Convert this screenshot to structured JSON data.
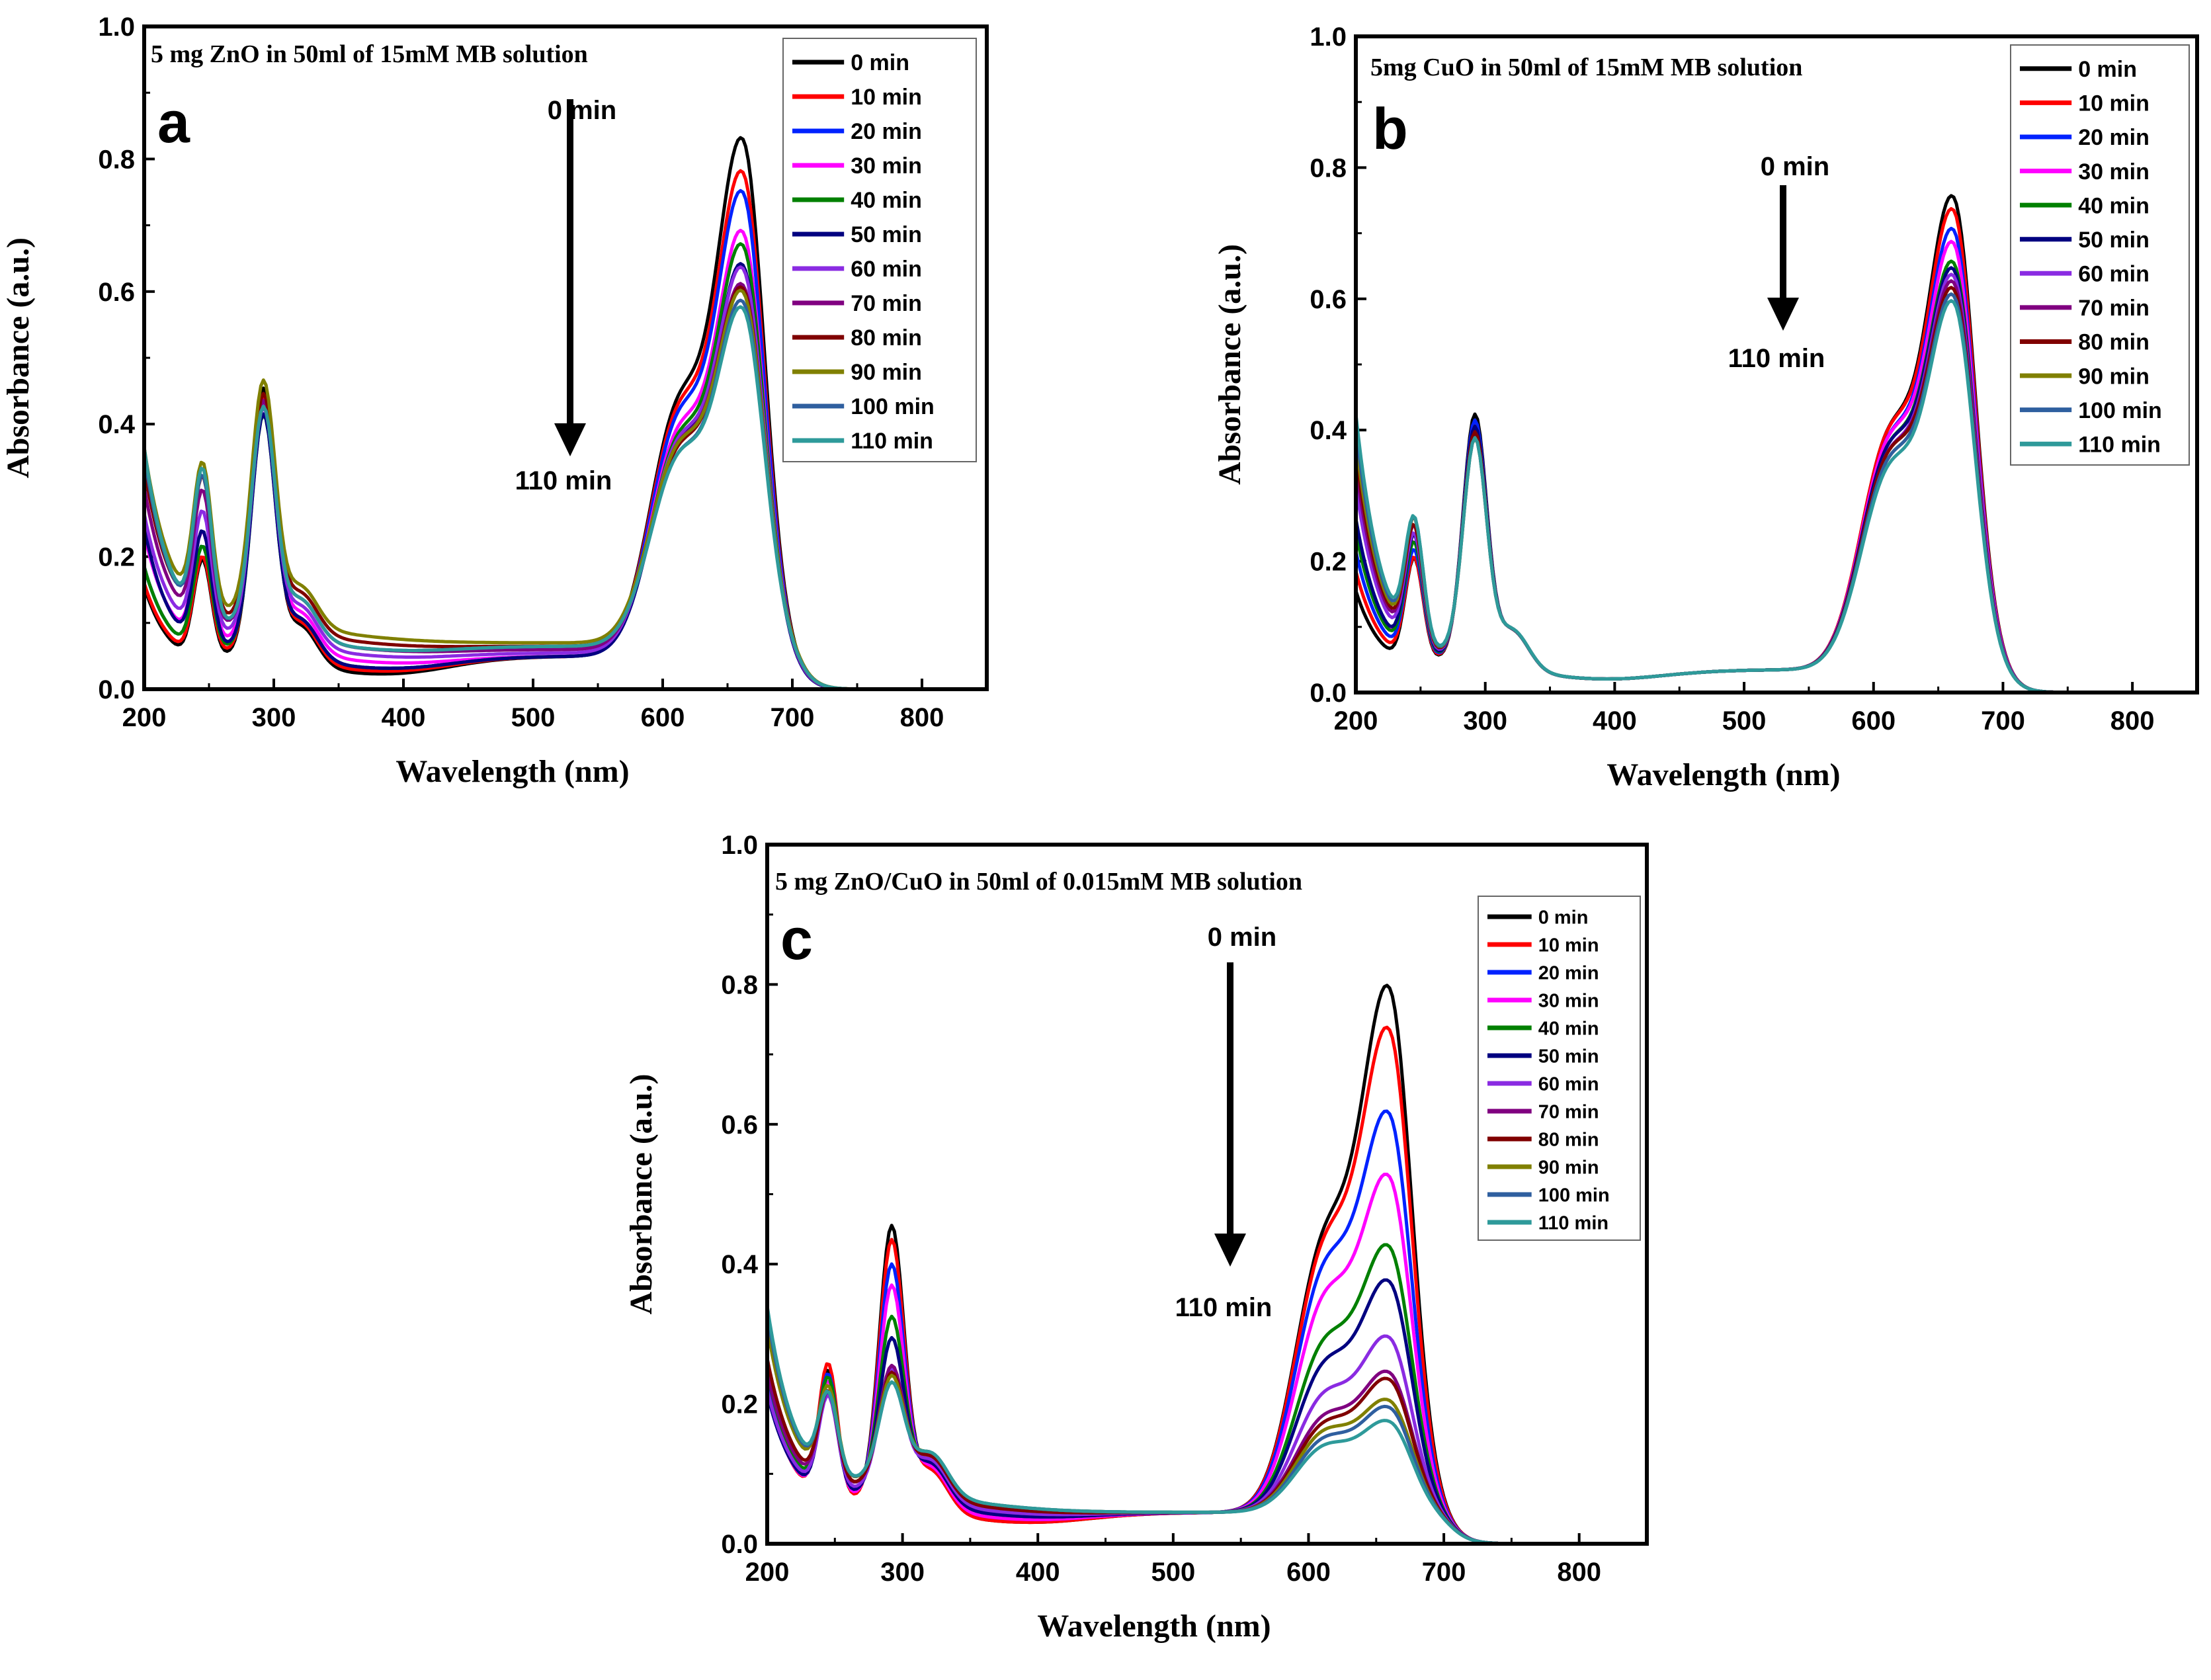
{
  "chart_data": [
    {
      "panel_id": "a",
      "type": "line",
      "title": "",
      "panel_letter": "a",
      "annotation": "5 mg ZnO in 50ml of 15mM MB solution",
      "arrow_start_label": "0 min",
      "arrow_end_label": "110 min",
      "xlabel": "Wavelength (nm)",
      "ylabel": "Absorbance (a.u.)",
      "xlim": [
        200,
        850
      ],
      "ylim": [
        0,
        1.0
      ],
      "xticks": [
        "200",
        "300",
        "400",
        "500",
        "600",
        "700",
        "800"
      ],
      "yticks": [
        "0.0",
        "0.2",
        "0.4",
        "0.6",
        "0.8",
        "1.0"
      ],
      "grid": false,
      "legend_position": "top-right",
      "series": [
        {
          "name": "0 min",
          "color": "#000000",
          "peak_shoulder": 0.41,
          "peak_main": 0.83,
          "peak_290": 0.45,
          "peak_245": 0.16,
          "start": 0.14,
          "valley": 0.01,
          "mid": 0.05,
          "tail_200": 0.14
        },
        {
          "name": "10 min",
          "color": "#ff0000",
          "peak_shoulder": 0.4,
          "peak_main": 0.78,
          "peak_290": 0.43,
          "peak_245": 0.16,
          "start": 0.14,
          "valley": 0.015,
          "mid": 0.05,
          "tail_200": 0.14
        },
        {
          "name": "20 min",
          "color": "#0022ff",
          "peak_shoulder": 0.39,
          "peak_main": 0.75,
          "peak_290": 0.42,
          "peak_245": 0.17,
          "start": 0.16,
          "valley": 0.02,
          "mid": 0.05,
          "tail_200": 0.16
        },
        {
          "name": "30 min",
          "color": "#ff00ff",
          "peak_shoulder": 0.37,
          "peak_main": 0.69,
          "peak_290": 0.41,
          "peak_245": 0.18,
          "start": 0.2,
          "valley": 0.03,
          "mid": 0.05,
          "tail_200": 0.2
        },
        {
          "name": "40 min",
          "color": "#008000",
          "peak_shoulder": 0.36,
          "peak_main": 0.67,
          "peak_290": 0.4,
          "peak_245": 0.17,
          "start": 0.16,
          "valley": 0.02,
          "mid": 0.05,
          "tail_200": 0.16
        },
        {
          "name": "50 min",
          "color": "#000080",
          "peak_shoulder": 0.35,
          "peak_main": 0.64,
          "peak_290": 0.4,
          "peak_245": 0.19,
          "start": 0.22,
          "valley": 0.02,
          "mid": 0.05,
          "tail_200": 0.22
        },
        {
          "name": "60 min",
          "color": "#8a2be2",
          "peak_shoulder": 0.35,
          "peak_main": 0.63,
          "peak_290": 0.39,
          "peak_245": 0.2,
          "start": 0.22,
          "valley": 0.04,
          "mid": 0.055,
          "tail_200": 0.22
        },
        {
          "name": "70 min",
          "color": "#800080",
          "peak_shoulder": 0.34,
          "peak_main": 0.6,
          "peak_290": 0.39,
          "peak_245": 0.22,
          "start": 0.25,
          "valley": 0.05,
          "mid": 0.06,
          "tail_200": 0.25
        },
        {
          "name": "80 min",
          "color": "#800000",
          "peak_shoulder": 0.33,
          "peak_main": 0.59,
          "peak_290": 0.39,
          "peak_245": 0.23,
          "start": 0.27,
          "valley": 0.06,
          "mid": 0.065,
          "tail_200": 0.27
        },
        {
          "name": "90 min",
          "color": "#808000",
          "peak_shoulder": 0.33,
          "peak_main": 0.58,
          "peak_290": 0.4,
          "peak_245": 0.24,
          "start": 0.29,
          "valley": 0.07,
          "mid": 0.07,
          "tail_200": 0.29
        },
        {
          "name": "100 min",
          "color": "#2f5f9f",
          "peak_shoulder": 0.32,
          "peak_main": 0.57,
          "peak_290": 0.38,
          "peak_245": 0.24,
          "start": 0.3,
          "valley": 0.05,
          "mid": 0.065,
          "tail_200": 0.3
        },
        {
          "name": "110 min",
          "color": "#2e9a9a",
          "peak_shoulder": 0.32,
          "peak_main": 0.56,
          "peak_290": 0.38,
          "peak_245": 0.25,
          "start": 0.31,
          "valley": 0.05,
          "mid": 0.065,
          "tail_200": 0.31
        }
      ],
      "peak_positions": {
        "main": 662,
        "shoulder": 612,
        "uv": 292,
        "uv2": 245
      }
    },
    {
      "panel_id": "b",
      "type": "line",
      "title": "",
      "panel_letter": "b",
      "annotation": "5mg CuO in 50ml of 15mM MB solution",
      "arrow_start_label": "0 min",
      "arrow_end_label": "110 min",
      "xlabel": "Wavelength (nm)",
      "ylabel": "Absorbance (a.u.)",
      "xlim": [
        200,
        850
      ],
      "ylim": [
        0,
        1.0
      ],
      "xticks": [
        "200",
        "300",
        "400",
        "500",
        "600",
        "700",
        "800"
      ],
      "yticks": [
        "0.0",
        "0.2",
        "0.4",
        "0.6",
        "0.8",
        "1.0"
      ],
      "grid": false,
      "legend_position": "top-right",
      "series": [
        {
          "name": "0 min",
          "color": "#000000",
          "peak_shoulder": 0.39,
          "peak_main": 0.77,
          "peak_290": 0.42,
          "peak_245": 0.17,
          "start": 0.14,
          "valley": 0.01,
          "mid": 0.035,
          "tail_200": 0.14
        },
        {
          "name": "10 min",
          "color": "#ff0000",
          "peak_shoulder": 0.39,
          "peak_main": 0.75,
          "peak_290": 0.41,
          "peak_245": 0.17,
          "start": 0.17,
          "valley": 0.01,
          "mid": 0.035,
          "tail_200": 0.17
        },
        {
          "name": "20 min",
          "color": "#0022ff",
          "peak_shoulder": 0.38,
          "peak_main": 0.72,
          "peak_290": 0.41,
          "peak_245": 0.18,
          "start": 0.2,
          "valley": 0.01,
          "mid": 0.035,
          "tail_200": 0.2
        },
        {
          "name": "30 min",
          "color": "#ff00ff",
          "peak_shoulder": 0.38,
          "peak_main": 0.7,
          "peak_290": 0.4,
          "peak_245": 0.19,
          "start": 0.24,
          "valley": 0.01,
          "mid": 0.035,
          "tail_200": 0.24
        },
        {
          "name": "40 min",
          "color": "#008000",
          "peak_shoulder": 0.37,
          "peak_main": 0.67,
          "peak_290": 0.4,
          "peak_245": 0.19,
          "start": 0.23,
          "valley": 0.01,
          "mid": 0.035,
          "tail_200": 0.23
        },
        {
          "name": "50 min",
          "color": "#000080",
          "peak_shoulder": 0.37,
          "peak_main": 0.66,
          "peak_290": 0.4,
          "peak_245": 0.2,
          "start": 0.25,
          "valley": 0.01,
          "mid": 0.035,
          "tail_200": 0.25
        },
        {
          "name": "60 min",
          "color": "#8a2be2",
          "peak_shoulder": 0.36,
          "peak_main": 0.65,
          "peak_290": 0.39,
          "peak_245": 0.2,
          "start": 0.3,
          "valley": 0.01,
          "mid": 0.035,
          "tail_200": 0.3
        },
        {
          "name": "70 min",
          "color": "#800080",
          "peak_shoulder": 0.36,
          "peak_main": 0.64,
          "peak_290": 0.39,
          "peak_245": 0.21,
          "start": 0.33,
          "valley": 0.01,
          "mid": 0.035,
          "tail_200": 0.33
        },
        {
          "name": "80 min",
          "color": "#800000",
          "peak_shoulder": 0.36,
          "peak_main": 0.63,
          "peak_290": 0.39,
          "peak_245": 0.21,
          "start": 0.35,
          "valley": 0.01,
          "mid": 0.035,
          "tail_200": 0.35
        },
        {
          "name": "90 min",
          "color": "#808000",
          "peak_shoulder": 0.35,
          "peak_main": 0.62,
          "peak_290": 0.38,
          "peak_245": 0.22,
          "start": 0.37,
          "valley": 0.01,
          "mid": 0.035,
          "tail_200": 0.37
        },
        {
          "name": "100 min",
          "color": "#2f5f9f",
          "peak_shoulder": 0.35,
          "peak_main": 0.62,
          "peak_290": 0.38,
          "peak_245": 0.22,
          "start": 0.39,
          "valley": 0.01,
          "mid": 0.035,
          "tail_200": 0.39
        },
        {
          "name": "110 min",
          "color": "#2e9a9a",
          "peak_shoulder": 0.34,
          "peak_main": 0.61,
          "peak_290": 0.38,
          "peak_245": 0.22,
          "start": 0.41,
          "valley": 0.01,
          "mid": 0.035,
          "tail_200": 0.41
        }
      ],
      "peak_positions": {
        "main": 662,
        "shoulder": 612,
        "uv": 292,
        "uv2": 245
      }
    },
    {
      "panel_id": "c",
      "type": "line",
      "title": "",
      "panel_letter": "c",
      "annotation": "5 mg ZnO/CuO in 50ml of 0.015mM MB solution",
      "arrow_start_label": "0 min",
      "arrow_end_label": "110 min",
      "xlabel": "Wavelength (nm)",
      "ylabel": "Absorbance (a.u.)",
      "xlim": [
        200,
        850
      ],
      "ylim": [
        0,
        1.0
      ],
      "xticks": [
        "200",
        "300",
        "400",
        "500",
        "600",
        "700",
        "800"
      ],
      "yticks": [
        "0.0",
        "0.2",
        "0.4",
        "0.6",
        "0.8",
        "1.0"
      ],
      "grid": false,
      "legend_position": "top-right",
      "series": [
        {
          "name": "0 min",
          "color": "#000000",
          "peak_shoulder": 0.42,
          "peak_main": 0.8,
          "peak_290": 0.44,
          "peak_245": 0.2,
          "start": 0.21,
          "valley": 0.02,
          "mid": 0.045,
          "tail_200": 0.21
        },
        {
          "name": "10 min",
          "color": "#ff0000",
          "peak_shoulder": 0.41,
          "peak_main": 0.74,
          "peak_290": 0.42,
          "peak_245": 0.21,
          "start": 0.2,
          "valley": 0.02,
          "mid": 0.045,
          "tail_200": 0.2
        },
        {
          "name": "20 min",
          "color": "#0022ff",
          "peak_shoulder": 0.38,
          "peak_main": 0.62,
          "peak_290": 0.38,
          "peak_245": 0.19,
          "start": 0.2,
          "valley": 0.025,
          "mid": 0.045,
          "tail_200": 0.2
        },
        {
          "name": "30 min",
          "color": "#ff00ff",
          "peak_shoulder": 0.34,
          "peak_main": 0.53,
          "peak_290": 0.35,
          "peak_245": 0.18,
          "start": 0.19,
          "valley": 0.025,
          "mid": 0.045,
          "tail_200": 0.19
        },
        {
          "name": "40 min",
          "color": "#008000",
          "peak_shoulder": 0.28,
          "peak_main": 0.43,
          "peak_290": 0.3,
          "peak_245": 0.18,
          "start": 0.21,
          "valley": 0.03,
          "mid": 0.045,
          "tail_200": 0.21
        },
        {
          "name": "50 min",
          "color": "#000080",
          "peak_shoulder": 0.25,
          "peak_main": 0.38,
          "peak_290": 0.27,
          "peak_245": 0.16,
          "start": 0.18,
          "valley": 0.03,
          "mid": 0.045,
          "tail_200": 0.18
        },
        {
          "name": "60 min",
          "color": "#8a2be2",
          "peak_shoulder": 0.21,
          "peak_main": 0.3,
          "peak_290": 0.22,
          "peak_245": 0.15,
          "start": 0.18,
          "valley": 0.035,
          "mid": 0.045,
          "tail_200": 0.18
        },
        {
          "name": "70 min",
          "color": "#800080",
          "peak_shoulder": 0.18,
          "peak_main": 0.25,
          "peak_290": 0.22,
          "peak_245": 0.15,
          "start": 0.2,
          "valley": 0.04,
          "mid": 0.045,
          "tail_200": 0.2
        },
        {
          "name": "80 min",
          "color": "#800000",
          "peak_shoulder": 0.17,
          "peak_main": 0.24,
          "peak_290": 0.21,
          "peak_245": 0.15,
          "start": 0.22,
          "valley": 0.04,
          "mid": 0.045,
          "tail_200": 0.22
        },
        {
          "name": "90 min",
          "color": "#808000",
          "peak_shoulder": 0.16,
          "peak_main": 0.21,
          "peak_290": 0.2,
          "peak_245": 0.15,
          "start": 0.26,
          "valley": 0.045,
          "mid": 0.045,
          "tail_200": 0.26
        },
        {
          "name": "100 min",
          "color": "#2f5f9f",
          "peak_shoulder": 0.15,
          "peak_main": 0.2,
          "peak_290": 0.19,
          "peak_245": 0.14,
          "start": 0.28,
          "valley": 0.045,
          "mid": 0.045,
          "tail_200": 0.28
        },
        {
          "name": "110 min",
          "color": "#2e9a9a",
          "peak_shoulder": 0.14,
          "peak_main": 0.18,
          "peak_290": 0.19,
          "peak_245": 0.14,
          "start": 0.29,
          "valley": 0.045,
          "mid": 0.045,
          "tail_200": 0.29
        }
      ],
      "peak_positions": {
        "main": 660,
        "shoulder": 612,
        "uv": 292,
        "uv2": 245
      }
    }
  ]
}
